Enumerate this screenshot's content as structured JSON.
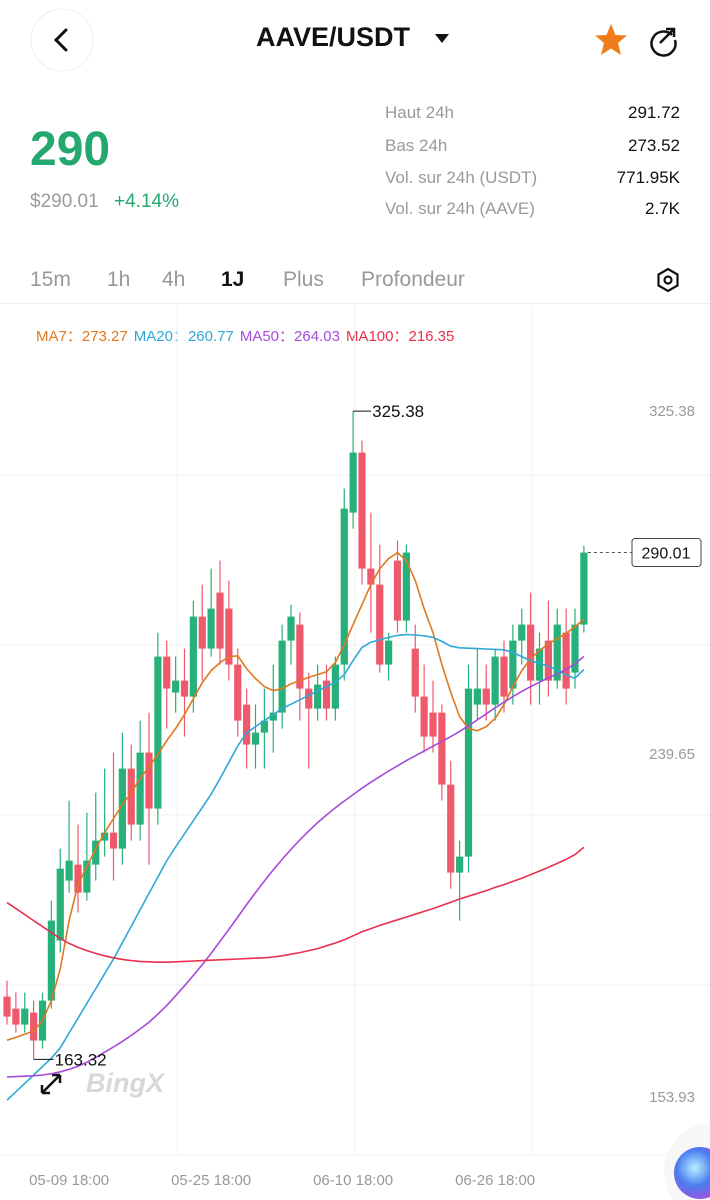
{
  "header": {
    "title": "AAVE/USDT"
  },
  "price": {
    "last": "290",
    "usd": "$290.01",
    "change": "+4.14%"
  },
  "stats": [
    {
      "label": "Haut 24h",
      "value": "291.72"
    },
    {
      "label": "Bas 24h",
      "value": "273.52"
    },
    {
      "label": "Vol. sur 24h (USDT)",
      "value": "771.95K"
    },
    {
      "label": "Vol. sur 24h (AAVE)",
      "value": "2.7K"
    }
  ],
  "tabs": [
    "15m",
    "1h",
    "4h",
    "1J",
    "Plus",
    "Profondeur"
  ],
  "active_tab": "1J",
  "watermark": "BingX",
  "chart_data": {
    "type": "candlestick",
    "up_color": "#26b07a",
    "down_color": "#ee5a6c",
    "ylim": [
      139.4,
      351.9
    ],
    "yticks": [
      325.38,
      239.65,
      153.93
    ],
    "categories": [
      null,
      null,
      null,
      null,
      null,
      null,
      null,
      "05-09 18:00",
      null,
      null,
      null,
      null,
      null,
      null,
      null,
      null,
      null,
      null,
      null,
      null,
      null,
      null,
      null,
      "05-25 18:00",
      null,
      null,
      null,
      null,
      null,
      null,
      null,
      null,
      null,
      null,
      null,
      null,
      null,
      null,
      null,
      "06-10 18:00",
      null,
      null,
      null,
      null,
      null,
      null,
      null,
      null,
      null,
      null,
      null,
      null,
      null,
      null,
      null,
      "06-26 18:00",
      null,
      null,
      null,
      null,
      null,
      null,
      null,
      null,
      null,
      null
    ],
    "open": [
      179,
      176,
      172,
      175,
      168,
      178,
      193,
      208,
      212,
      205,
      212,
      218,
      220,
      216,
      236,
      222,
      240,
      226,
      264,
      255,
      258,
      254,
      274,
      266,
      280,
      276,
      262,
      252,
      242,
      245,
      248,
      250,
      268,
      272,
      256,
      251,
      258,
      251,
      262,
      300,
      315,
      286,
      282,
      262,
      288,
      273,
      266,
      254,
      250,
      250,
      232,
      210,
      214,
      252,
      256,
      252,
      264,
      256,
      268,
      272,
      258,
      268,
      258,
      270,
      260,
      272
    ],
    "high": [
      183,
      180,
      180,
      178,
      180,
      203,
      216,
      228,
      222,
      225,
      230,
      236,
      240,
      245,
      242,
      248,
      250,
      270,
      268,
      264,
      266,
      278,
      282,
      286,
      288,
      283,
      266,
      256,
      252,
      256,
      262,
      272,
      277,
      275,
      260,
      262,
      262,
      264,
      306,
      325.38,
      318,
      300,
      292,
      270,
      293,
      292,
      272,
      262,
      258,
      252,
      238,
      218,
      262,
      266,
      262,
      266,
      268,
      272,
      276,
      280,
      270,
      278,
      276,
      276,
      276,
      291.72
    ],
    "low": [
      172,
      170,
      170,
      163.32,
      166,
      176,
      190,
      205,
      200,
      203,
      208,
      214,
      208,
      212,
      218,
      218,
      212,
      222,
      246,
      250,
      244,
      250,
      258,
      264,
      262,
      258,
      244,
      236,
      236,
      236,
      240,
      246,
      262,
      248,
      236,
      248,
      248,
      248,
      258,
      296,
      282,
      270,
      260,
      258,
      270,
      270,
      250,
      240,
      240,
      228,
      206,
      198,
      210,
      248,
      248,
      248,
      250,
      252,
      262,
      252,
      252,
      254,
      256,
      252,
      256,
      270
    ],
    "close": [
      174,
      172,
      176,
      168,
      178,
      198,
      211,
      213,
      205,
      213,
      218,
      220,
      216,
      236,
      222,
      240,
      226,
      264,
      256,
      258,
      254,
      274,
      266,
      276,
      266,
      262,
      248,
      242,
      245,
      248,
      250,
      268,
      274,
      256,
      251,
      257,
      251,
      262,
      301,
      315,
      286,
      282,
      262,
      268,
      273,
      290,
      254,
      244,
      244,
      232,
      210,
      214,
      256,
      256,
      252,
      264,
      254,
      268,
      272,
      258,
      266,
      258,
      272,
      256,
      272,
      290.01
    ],
    "series": [
      {
        "name": "MA7",
        "color": "#e0781e",
        "values": [
          168.1,
          168.8,
          169.6,
          170.4,
          173,
          178,
          186,
          198,
          207,
          211.5,
          216,
          220,
          223.5,
          227,
          230,
          233.5,
          236.5,
          239.5,
          243,
          246,
          249.5,
          253.5,
          257.5,
          260.5,
          262.5,
          264,
          264.2,
          261,
          258.5,
          256.5,
          255.5,
          256,
          257.2,
          258,
          258.8,
          259.5,
          260.2,
          262.5,
          267,
          272,
          277,
          282,
          286,
          288.5,
          290,
          288,
          283,
          276,
          270,
          262,
          255,
          249,
          246,
          245.5,
          246.5,
          248.5,
          252,
          256.5,
          260.5,
          263.5,
          265.5,
          267.2,
          268.5,
          269.8,
          271.5,
          273.27
        ]
      },
      {
        "name": "MA20",
        "color": "#2ea8d8",
        "values": [
          153.1,
          155.2,
          157.3,
          159.4,
          161.5,
          163.6,
          166.2,
          169.9,
          173.6,
          177.3,
          181,
          184.7,
          188.4,
          192.5,
          196.6,
          200.7,
          204.8,
          208.9,
          213,
          216.4,
          219.7,
          223,
          226.3,
          229.6,
          233.5,
          237.6,
          241.7,
          244.9,
          246.5,
          248,
          249.5,
          251,
          252.1,
          253.2,
          254.3,
          255.4,
          256.5,
          257.6,
          259.5,
          263,
          266.3,
          267.6,
          268.2,
          268.8,
          269.3,
          269.5,
          269.4,
          269.2,
          268.8,
          267.8,
          266.6,
          266.2,
          266.1,
          266,
          265.9,
          265.8,
          265.7,
          265,
          264,
          263,
          262.3,
          261.6,
          260.6,
          259.4,
          258.6,
          260.77
        ]
      },
      {
        "name": "MA50",
        "color": "#a64bd8",
        "values": [
          158.9,
          159,
          159.1,
          159.2,
          159.4,
          159.7,
          160.2,
          160.8,
          161.6,
          162.6,
          163.8,
          165.1,
          166.4,
          167.8,
          169.3,
          170.9,
          172.6,
          174.6,
          176.8,
          179.2,
          181.7,
          184.3,
          187,
          189.8,
          192.8,
          195.8,
          198.9,
          202,
          205,
          207.9,
          210.7,
          213.3,
          215.8,
          218.2,
          220.4,
          222.5,
          224.4,
          226.2,
          227.9,
          229.5,
          231.1,
          232.6,
          234,
          235.4,
          236.7,
          238,
          239.2,
          240.4,
          241.6,
          242.8,
          244,
          245.3,
          246.7,
          248.2,
          249.7,
          251.2,
          252.6,
          254,
          255.3,
          256.5,
          257.6,
          258.7,
          259.7,
          260.8,
          262.2,
          264.03
        ]
      },
      {
        "name": "MA100",
        "color": "#e8304f",
        "values": [
          202.5,
          201,
          199.5,
          198,
          196.5,
          195,
          193.5,
          192.3,
          191.3,
          190.5,
          189.8,
          189.2,
          188.7,
          188.3,
          188,
          187.8,
          187.7,
          187.6,
          187.6,
          187.7,
          187.8,
          187.9,
          188,
          188.1,
          188.2,
          188.3,
          188.4,
          188.5,
          188.6,
          188.7,
          188.9,
          189.2,
          189.6,
          190,
          190.5,
          191,
          191.7,
          192.4,
          193.2,
          194.2,
          195.2,
          196,
          196.8,
          197.5,
          198.2,
          198.9,
          199.6,
          200.3,
          201,
          201.8,
          202.6,
          203.4,
          204.1,
          204.8,
          205.5,
          206.3,
          207,
          207.8,
          208.6,
          209.5,
          210.4,
          211.3,
          212.3,
          213.3,
          214.5,
          216.35
        ]
      }
    ]
  }
}
